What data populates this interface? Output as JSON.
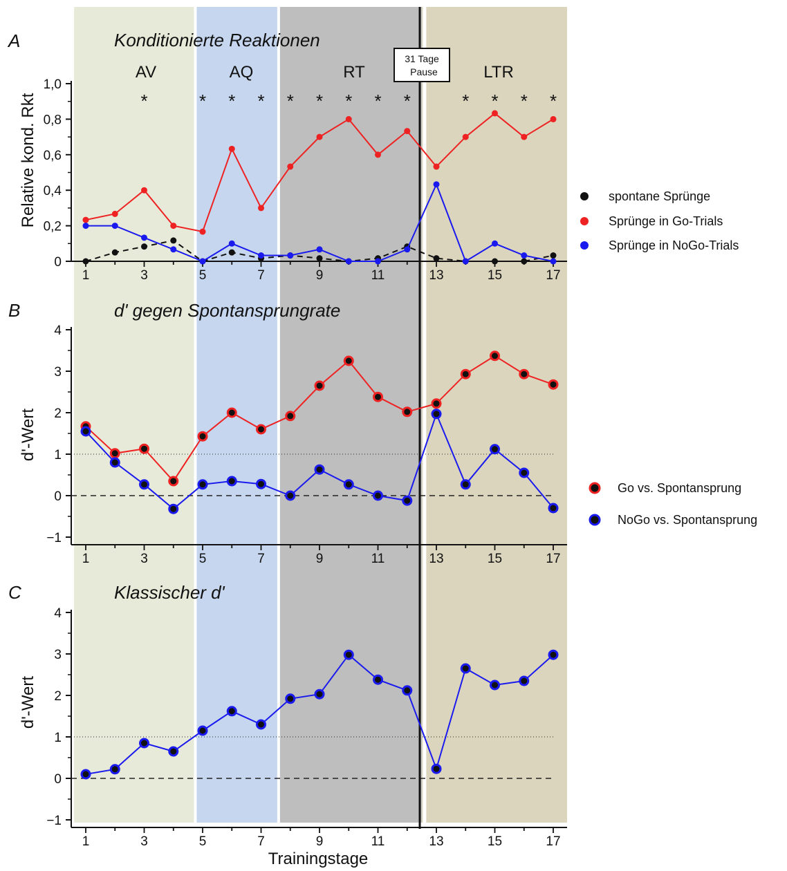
{
  "colors": {
    "phase_av": "#e8ead9",
    "phase_aq": "#c5d6ee",
    "phase_rt": "#bebebe",
    "phase_ltr": "#dbd5be",
    "go": "#ee2222",
    "nogo": "#1a1aee",
    "spontan": "#111111"
  },
  "x_label": "Trainingstage",
  "x_ticks": [
    "1",
    "3",
    "5",
    "7",
    "9",
    "11",
    "13",
    "15",
    "17"
  ],
  "phases": [
    {
      "label": "AV",
      "from_day": 0.6,
      "to_day": 4.75,
      "color_key": "phase_av"
    },
    {
      "label": "AQ",
      "from_day": 4.75,
      "to_day": 7.6,
      "color_key": "phase_aq"
    },
    {
      "label": "RT",
      "from_day": 7.6,
      "to_day": 12.5,
      "color_key": "phase_rt"
    },
    {
      "label": "LTR",
      "from_day": 12.5,
      "to_day": 17.5,
      "color_key": "phase_ltr"
    }
  ],
  "pause_box": {
    "line1": "31 Tage",
    "line2": "Pause"
  },
  "significance": {
    "symbol": "*",
    "days": [
      3,
      5,
      6,
      7,
      8,
      9,
      10,
      11,
      12,
      14,
      15,
      16,
      17
    ]
  },
  "chart_data": [
    {
      "panel": "A",
      "type": "line",
      "title": "Konditionierte Reaktionen",
      "ylabel": "Relative kond. Rkt",
      "ylim": [
        0,
        1.0
      ],
      "y_ticks": [
        "0",
        "0,2",
        "0,4",
        "0,6",
        "0,8",
        "1,0"
      ],
      "x": [
        1,
        2,
        3,
        4,
        5,
        6,
        7,
        8,
        9,
        10,
        11,
        12,
        13,
        14,
        15,
        16,
        17
      ],
      "series": [
        {
          "name": "spontane Sprünge",
          "color_key": "spontan",
          "style": "dashed",
          "values": [
            0.0,
            0.05,
            0.083,
            0.117,
            0.0,
            0.05,
            0.017,
            0.033,
            0.017,
            0.0,
            0.017,
            0.083,
            0.017,
            0.0,
            0.0,
            0.0,
            0.033
          ]
        },
        {
          "name": "Sprünge in Go-Trials",
          "color_key": "go",
          "style": "solid",
          "values": [
            0.233,
            0.267,
            0.4,
            0.2,
            0.167,
            0.633,
            0.3,
            0.533,
            0.7,
            0.8,
            0.6,
            0.733,
            0.533,
            0.7,
            0.833,
            0.7,
            0.8
          ]
        },
        {
          "name": "Sprünge in NoGo-Trials",
          "color_key": "nogo",
          "style": "solid",
          "values": [
            0.2,
            0.2,
            0.133,
            0.067,
            0.0,
            0.1,
            0.033,
            0.033,
            0.067,
            0.0,
            0.0,
            0.067,
            0.433,
            0.0,
            0.1,
            0.033,
            0.0
          ]
        }
      ]
    },
    {
      "panel": "B",
      "type": "line",
      "title": "d' gegen Spontansprungrate",
      "ylabel": "d'-Wert",
      "ylim": [
        -1,
        4
      ],
      "y_ticks": [
        "−1",
        "0",
        "1",
        "2",
        "3",
        "4"
      ],
      "reference_lines": [
        {
          "y": 1,
          "style": "dotted"
        },
        {
          "y": 0,
          "style": "dashed"
        }
      ],
      "x": [
        1,
        2,
        3,
        4,
        5,
        6,
        7,
        8,
        9,
        10,
        11,
        12,
        13,
        14,
        15,
        16,
        17
      ],
      "series": [
        {
          "name": "Go vs. Spontansprung",
          "color_key": "go",
          "values": [
            1.67,
            1.02,
            1.13,
            0.35,
            1.43,
            2.0,
            1.6,
            1.92,
            2.65,
            3.25,
            2.38,
            2.02,
            2.22,
            2.93,
            3.37,
            2.93,
            2.68
          ]
        },
        {
          "name": "NoGo vs. Spontansprung",
          "color_key": "nogo",
          "values": [
            1.55,
            0.8,
            0.27,
            -0.32,
            0.27,
            0.35,
            0.28,
            0.0,
            0.63,
            0.27,
            0.0,
            -0.12,
            1.97,
            0.27,
            1.12,
            0.55,
            -0.3
          ]
        }
      ]
    },
    {
      "panel": "C",
      "type": "line",
      "title": "Klassischer d'",
      "ylabel": "d'-Wert",
      "ylim": [
        -1,
        4
      ],
      "y_ticks": [
        "−1",
        "0",
        "1",
        "2",
        "3",
        "4"
      ],
      "reference_lines": [
        {
          "y": 1,
          "style": "dotted"
        },
        {
          "y": 0,
          "style": "dashed"
        }
      ],
      "x": [
        1,
        2,
        3,
        4,
        5,
        6,
        7,
        8,
        9,
        10,
        11,
        12,
        13,
        14,
        15,
        16,
        17
      ],
      "series": [
        {
          "name": "",
          "color_key": "nogo",
          "values": [
            0.1,
            0.22,
            0.85,
            0.65,
            1.15,
            1.62,
            1.3,
            1.92,
            2.03,
            2.98,
            2.38,
            2.12,
            0.23,
            2.65,
            2.25,
            2.35,
            2.98
          ]
        }
      ]
    }
  ]
}
